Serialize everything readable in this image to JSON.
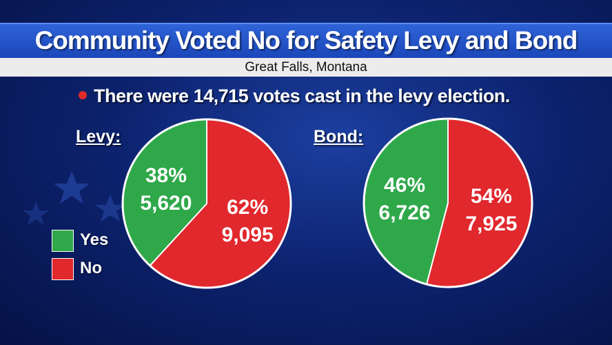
{
  "header": {
    "title": "Community Voted No for Safety Levy and Bond",
    "subtitle": "Great Falls, Montana"
  },
  "note": "There were 14,715 votes cast in the levy election.",
  "legend": {
    "yes_label": "Yes",
    "no_label": "No",
    "yes_color": "#2fa84a",
    "no_color": "#e0282d"
  },
  "chart_data": [
    {
      "type": "pie",
      "title": "Levy:",
      "categories": [
        "Yes",
        "No"
      ],
      "values": [
        5620,
        9095
      ],
      "percent_labels": [
        "38%",
        "62%"
      ],
      "value_labels": [
        "5,620",
        "9,095"
      ],
      "colors": [
        "#2fa84a",
        "#e0282d"
      ],
      "legend_position": "left"
    },
    {
      "type": "pie",
      "title": "Bond:",
      "categories": [
        "Yes",
        "No"
      ],
      "values": [
        6726,
        7925
      ],
      "percent_labels": [
        "46%",
        "54%"
      ],
      "value_labels": [
        "6,726",
        "7,925"
      ],
      "colors": [
        "#2fa84a",
        "#e0282d"
      ],
      "legend_position": "left"
    }
  ]
}
